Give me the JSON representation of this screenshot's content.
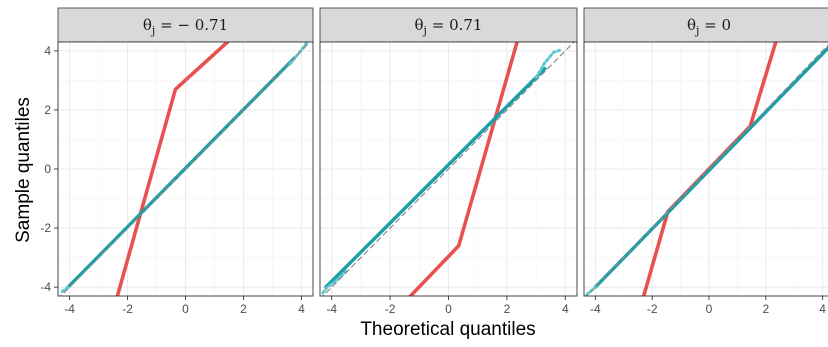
{
  "xlabel": "Theoretical quantiles",
  "ylabel": "Sample quantiles",
  "chart_data": {
    "type": "line",
    "xlabel": "Theoretical quantiles",
    "ylabel": "Sample quantiles",
    "xlim": [
      -4.4,
      4.4
    ],
    "ylim": [
      -4.3,
      4.3
    ],
    "xticks": [
      -4,
      -2,
      0,
      2,
      4
    ],
    "yticks": [
      -4,
      -2,
      0,
      2,
      4
    ],
    "x_tick_labels": [
      "-4",
      "-2",
      "0",
      "2",
      "4"
    ],
    "y_tick_labels": [
      "-4",
      "-2",
      "0",
      "2",
      "4"
    ],
    "grid": true,
    "colors": {
      "red": "#e8524e",
      "teal": "#1a9fa7",
      "teal_light": "#5cc8d0",
      "dashed": "#8a8a8a"
    },
    "panels": [
      {
        "label_base": "θ",
        "label_sub": "j",
        "label_rest": " = − 0.71",
        "series": [
          {
            "style": "red",
            "x": [
              -2.35,
              -0.35,
              1.45
            ],
            "y": [
              -4.3,
              2.7,
              4.3
            ]
          },
          {
            "style": "teal",
            "x": [
              -4.05,
              3.75
            ],
            "y": [
              -4.0,
              3.75
            ]
          },
          {
            "style": "teal_light_dotted",
            "x": [
              -4.25,
              -4.05
            ],
            "y": [
              -4.15,
              -4.0
            ]
          },
          {
            "style": "teal_light_dotted",
            "x": [
              3.6,
              3.85,
              4.1,
              4.2
            ],
            "y": [
              3.55,
              3.85,
              4.15,
              4.3
            ]
          },
          {
            "style": "dashed",
            "x": [
              -4.4,
              4.4
            ],
            "y": [
              -4.4,
              4.4
            ]
          }
        ]
      },
      {
        "label_base": "θ",
        "label_sub": "j",
        "label_rest": " = 0.71",
        "series": [
          {
            "style": "red",
            "x": [
              -1.3,
              0.35,
              2.35
            ],
            "y": [
              -4.3,
              -2.6,
              4.3
            ]
          },
          {
            "style": "teal",
            "x": [
              -4.2,
              3.3
            ],
            "y": [
              -4.0,
              3.4
            ]
          },
          {
            "style": "teal_light_dotted",
            "x": [
              -4.3,
              -4.15,
              -3.8,
              -3.5
            ],
            "y": [
              -4.2,
              -4.0,
              -3.75,
              -3.45
            ]
          },
          {
            "style": "teal_light_dotted",
            "x": [
              3.0,
              3.3,
              3.6,
              3.9
            ],
            "y": [
              3.1,
              3.6,
              3.95,
              4.05
            ]
          },
          {
            "style": "dashed",
            "x": [
              -4.4,
              4.4
            ],
            "y": [
              -4.4,
              4.4
            ]
          }
        ]
      },
      {
        "label_base": "θ",
        "label_sub": "j",
        "label_rest": " = 0",
        "series": [
          {
            "style": "red",
            "x": [
              -2.3,
              -1.45,
              1.45,
              2.35
            ],
            "y": [
              -4.3,
              -1.45,
              1.45,
              4.3
            ]
          },
          {
            "style": "teal",
            "x": [
              -4.0,
              4.4
            ],
            "y": [
              -4.0,
              4.3
            ]
          },
          {
            "style": "teal_light_dotted",
            "x": [
              -4.3,
              -4.0
            ],
            "y": [
              -4.25,
              -4.0
            ]
          },
          {
            "style": "dashed",
            "x": [
              -4.4,
              4.4
            ],
            "y": [
              -4.4,
              4.4
            ]
          }
        ]
      }
    ]
  }
}
